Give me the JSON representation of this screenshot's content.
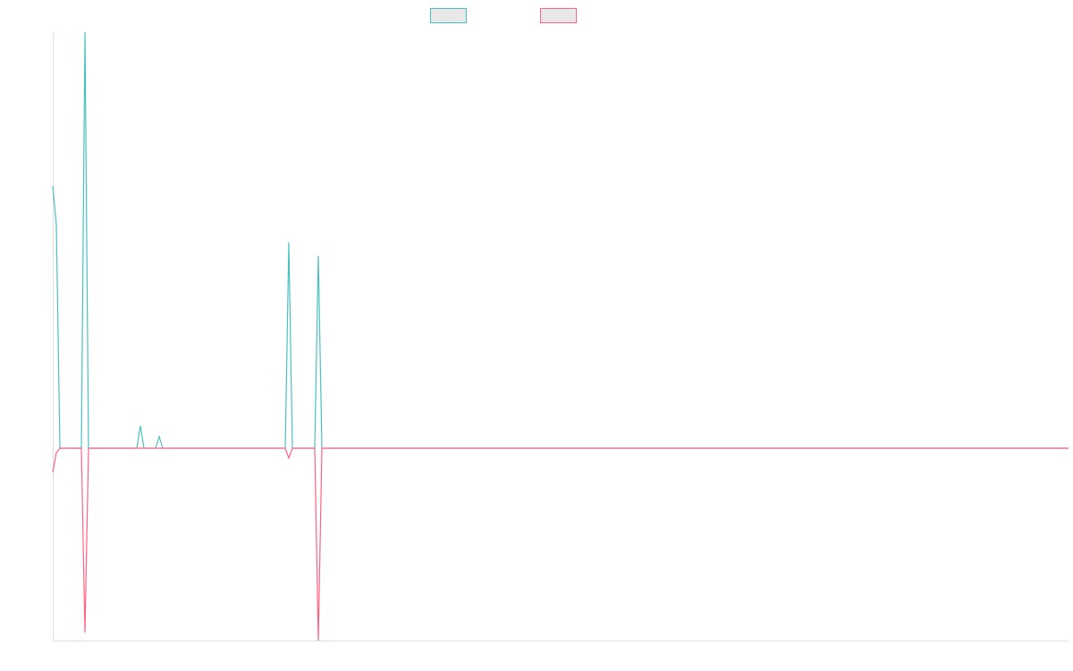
{
  "chart_data": {
    "type": "line",
    "x": [
      0,
      4,
      8,
      32,
      36,
      40,
      94,
      98,
      102,
      115,
      119,
      123,
      260,
      264,
      268,
      293,
      297,
      301,
      1136
    ],
    "xlim": [
      0,
      1136
    ],
    "ylim": [
      -215,
      465
    ],
    "series": [
      {
        "color": "#4bc0c0",
        "values": [
          293,
          250,
          0,
          0,
          465,
          0,
          0,
          25,
          0,
          0,
          13,
          0,
          0,
          230,
          0,
          0,
          215,
          0,
          0
        ]
      },
      {
        "color": "#ff6384",
        "values": [
          -27,
          -5,
          0,
          0,
          -206,
          0,
          0,
          0,
          0,
          0,
          0,
          0,
          0,
          -11,
          0,
          0,
          -215,
          0,
          0
        ]
      }
    ]
  }
}
